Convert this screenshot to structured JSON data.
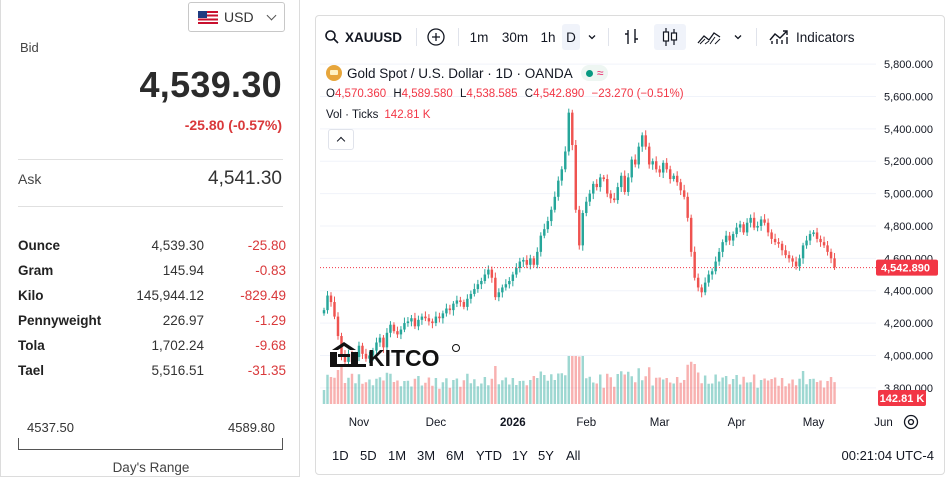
{
  "quote": {
    "currency": "USD",
    "bid_label": "Bid",
    "bid_price": "4,539.30",
    "bid_change": "-25.80 (-0.57%)",
    "ask_label": "Ask",
    "ask_price": "4,541.30",
    "units": [
      {
        "name": "Ounce",
        "value": "4,539.30",
        "change": "-25.80"
      },
      {
        "name": "Gram",
        "value": "145.94",
        "change": "-0.83"
      },
      {
        "name": "Kilo",
        "value": "145,944.12",
        "change": "-829.49"
      },
      {
        "name": "Pennyweight",
        "value": "226.97",
        "change": "-1.29"
      },
      {
        "name": "Tola",
        "value": "1,702.24",
        "change": "-9.68"
      },
      {
        "name": "Tael",
        "value": "5,516.51",
        "change": "-31.35"
      }
    ],
    "range_low": "4537.50",
    "range_high": "4589.80",
    "range_label": "Day's Range"
  },
  "toolbar": {
    "symbol": "XAUUSD",
    "intervals": [
      "1m",
      "30m",
      "1h",
      "D"
    ],
    "active_interval": "D",
    "indicators_label": "Indicators"
  },
  "legend": {
    "title": "Gold Spot / U.S. Dollar · 1D · OANDA",
    "open_label": "O",
    "open": "4,570.360",
    "high_label": "H",
    "high": "4,589.580",
    "low_label": "L",
    "low": "4,538.585",
    "close_label": "C",
    "close": "4,542.890",
    "change": "−23.270 (−0.51%)",
    "vol_label": "Vol · Ticks",
    "vol_value": "142.81 K"
  },
  "watermark": "KITCO",
  "bottom": {
    "ranges": [
      "1D",
      "5D",
      "1M",
      "3M",
      "6M",
      "YTD",
      "1Y",
      "5Y",
      "All"
    ],
    "clock": "00:21:04 UTC-4"
  },
  "colors": {
    "up": "#26a69a",
    "down": "#ef5350",
    "price_label": "#f23645",
    "negative_text": "#d9383a"
  },
  "icons": [
    "us-flag-icon",
    "chevron-down-icon",
    "search-icon",
    "plus-circle-icon",
    "bar-style-icon",
    "candle-style-icon",
    "area-style-icon",
    "indicators-icon",
    "settings-icon"
  ],
  "chart_data": {
    "type": "line",
    "title": "Gold Spot / U.S. Dollar · 1D · OANDA",
    "xlabel": "",
    "ylabel": "",
    "ylim": [
      3700,
      5850
    ],
    "y_ticks": [
      "5,800.000",
      "5,600.000",
      "5,400.000",
      "5,200.000",
      "5,000.000",
      "4,800.000",
      "4,600.000",
      "4,400.000",
      "4,200.000",
      "4,000.000",
      "3,800.000"
    ],
    "y_tick_values": [
      5800,
      5600,
      5400,
      5200,
      5000,
      4800,
      4600,
      4400,
      4200,
      4000,
      3800
    ],
    "x_ticks": [
      "Nov",
      "Dec",
      "2026",
      "Feb",
      "Mar",
      "Apr",
      "May",
      "Jun"
    ],
    "x_tick_index": [
      10,
      32,
      54,
      75,
      96,
      118,
      140,
      160
    ],
    "last_price_label": "4,542.890",
    "last_price": 4542.89,
    "volume_label": "142.81 K",
    "series": [
      {
        "values": [
          4280,
          4370,
          4330,
          4240,
          4120,
          4000,
          3960,
          4010,
          3960,
          3990,
          4060,
          4010,
          3980,
          4000,
          4030,
          4080,
          4110,
          4050,
          4140,
          4190,
          4150,
          4130,
          4160,
          4200,
          4210,
          4230,
          4180,
          4220,
          4240,
          4230,
          4210,
          4200,
          4240,
          4230,
          4260,
          4290,
          4280,
          4320,
          4340,
          4330,
          4300,
          4350,
          4380,
          4410,
          4440,
          4460,
          4500,
          4530,
          4480,
          4360,
          4390,
          4420,
          4440,
          4460,
          4500,
          4540,
          4580,
          4590,
          4560,
          4600,
          4560,
          4640,
          4740,
          4780,
          4830,
          4900,
          4980,
          5080,
          5150,
          5260,
          5500,
          5300,
          4900,
          4680,
          4880,
          4950,
          5000,
          5060,
          5040,
          5100,
          5090,
          5000,
          4970,
          4960,
          5040,
          5110,
          5010,
          5100,
          5210,
          5180,
          5290,
          5360,
          5290,
          5180,
          5200,
          5150,
          5130,
          5190,
          5150,
          5090,
          5110,
          5070,
          5020,
          4980,
          4850,
          4640,
          4480,
          4420,
          4390,
          4450,
          4500,
          4520,
          4580,
          4640,
          4700,
          4740,
          4710,
          4750,
          4790,
          4810,
          4760,
          4820,
          4850,
          4790,
          4800,
          4840,
          4820,
          4760,
          4720,
          4700,
          4690,
          4650,
          4620,
          4600,
          4580,
          4550,
          4600,
          4680,
          4710,
          4750,
          4760,
          4720,
          4700,
          4680,
          4640,
          4600,
          4545
        ]
      }
    ]
  }
}
